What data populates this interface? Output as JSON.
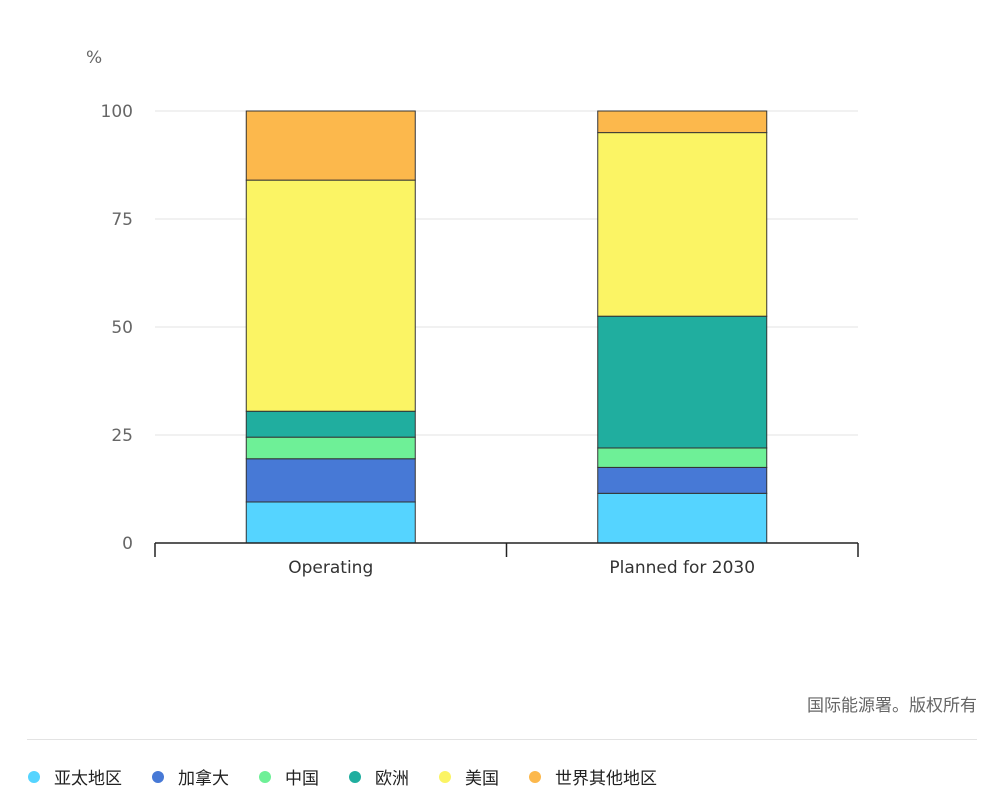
{
  "chart_data": {
    "type": "bar",
    "stacked": true,
    "unit_label": "%",
    "categories": [
      "Operating",
      "Planned for 2030"
    ],
    "ylim": [
      0,
      100
    ],
    "y_ticks": [
      0,
      25,
      50,
      75,
      100
    ],
    "grid": true,
    "legend_position": "bottom",
    "series": [
      {
        "name": "亚太地区",
        "color": "#55d4ff",
        "values": [
          9.5,
          11.5
        ]
      },
      {
        "name": "加拿大",
        "color": "#4779d6",
        "values": [
          10,
          6
        ]
      },
      {
        "name": "中国",
        "color": "#6ef097",
        "values": [
          5,
          4.5
        ]
      },
      {
        "name": "欧洲",
        "color": "#20ae9f",
        "values": [
          6,
          30.5
        ]
      },
      {
        "name": "美国",
        "color": "#fbf464",
        "values": [
          53.5,
          42.5
        ]
      },
      {
        "name": "世界其他地区",
        "color": "#fcb84c",
        "values": [
          16,
          5
        ]
      }
    ]
  },
  "copyright": "国际能源署。版权所有"
}
